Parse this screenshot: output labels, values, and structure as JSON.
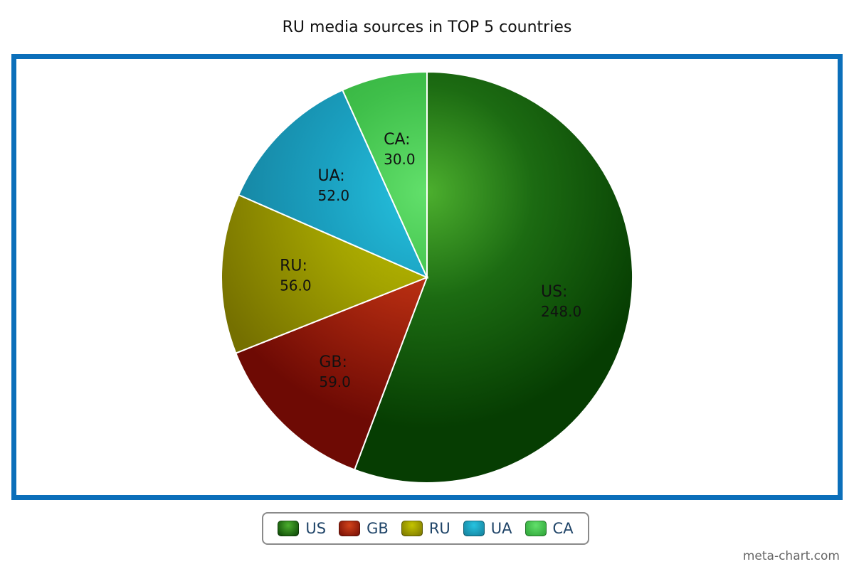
{
  "chart_data": {
    "type": "pie",
    "title": "RU media sources in TOP 5 countries",
    "slices": [
      {
        "label": "US",
        "value": 248.0,
        "value_text": "248.0",
        "color": "#1c6b12",
        "light": "#4caf2e",
        "dark": "#063d02"
      },
      {
        "label": "GB",
        "value": 59.0,
        "value_text": "59.0",
        "color": "#b02a10",
        "light": "#d2431a",
        "dark": "#6e0a04"
      },
      {
        "label": "RU",
        "value": 56.0,
        "value_text": "56.0",
        "color": "#a3a300",
        "light": "#c4c400",
        "dark": "#757000"
      },
      {
        "label": "UA",
        "value": 52.0,
        "value_text": "52.0",
        "color": "#1a9fbf",
        "light": "#26c3e0",
        "dark": "#147a96"
      },
      {
        "label": "CA",
        "value": 30.0,
        "value_text": "30.0",
        "color": "#3fbf4a",
        "light": "#62e06b",
        "dark": "#2a9f33"
      }
    ],
    "legend": {
      "placement": "bottom"
    },
    "frame_color": "#0b6fba"
  },
  "watermark": "meta-chart.com"
}
